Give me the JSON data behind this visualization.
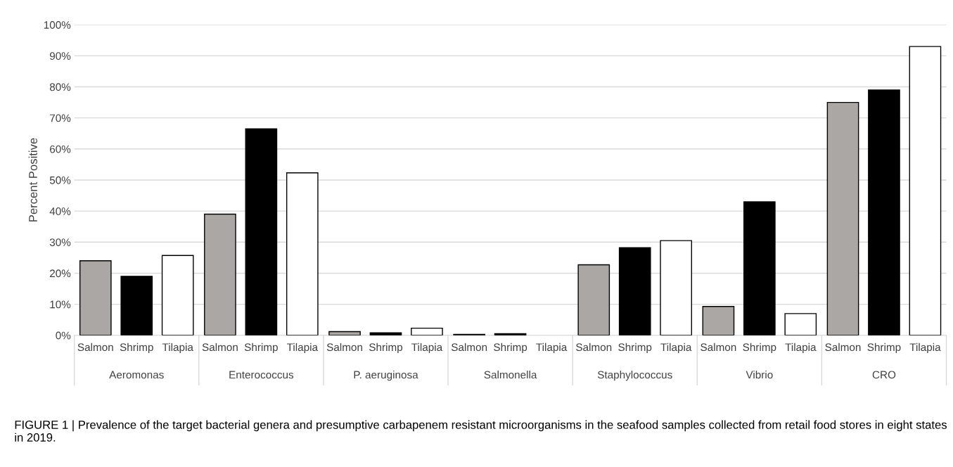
{
  "chart_data": {
    "type": "bar",
    "ylabel": "Percent Positive",
    "categories": [
      "Aeromonas",
      "Enterococcus",
      "P. aeruginosa",
      "Salmonella",
      "Staphylococcus",
      "Vibrio",
      "CRO"
    ],
    "series": [
      {
        "name": "Salmon",
        "color": "#aaa7a5",
        "values": [
          24,
          39,
          1.2,
          0.3,
          22.7,
          9.3,
          75
        ]
      },
      {
        "name": "Shrimp",
        "color": "#000000",
        "values": [
          19,
          66.5,
          0.8,
          0.5,
          28.2,
          43,
          79
        ]
      },
      {
        "name": "Tilapia",
        "color": "#ffffff",
        "values": [
          25.7,
          52.3,
          2.3,
          0,
          30.5,
          7,
          93
        ]
      }
    ],
    "ylim": [
      0,
      100
    ],
    "yticks": [
      {
        "value": 0,
        "label": "0%"
      },
      {
        "value": 10,
        "label": "10%"
      },
      {
        "value": 20,
        "label": "20%"
      },
      {
        "value": 30,
        "label": "30%"
      },
      {
        "value": 40,
        "label": "40%"
      },
      {
        "value": 50,
        "label": "50%"
      },
      {
        "value": 60,
        "label": "60%"
      },
      {
        "value": 70,
        "label": "70%"
      },
      {
        "value": 80,
        "label": "80%"
      },
      {
        "value": 90,
        "label": "90%"
      },
      {
        "value": 100,
        "label": "100%"
      }
    ],
    "grid": "y",
    "legend": false,
    "annotations": [
      "FIGURE 1 | Prevalence of the target bacterial genera and presumptive carbapenem resistant microorganisms in the seafood samples collected from retail food stores in eight states in 2019."
    ]
  }
}
